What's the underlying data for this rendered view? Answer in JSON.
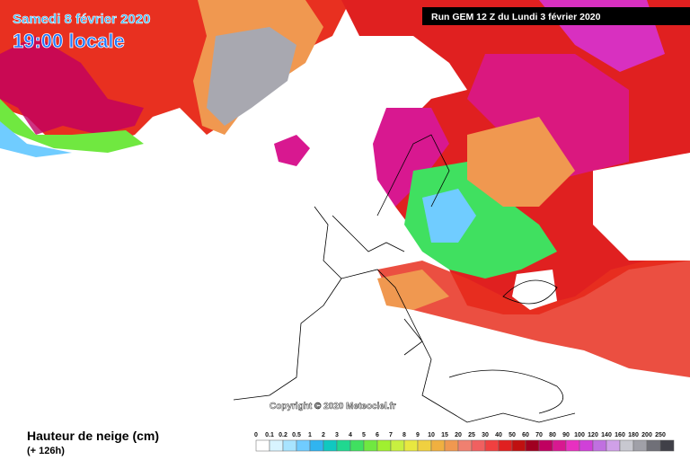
{
  "header": {
    "date": "Samedi 8 février 2020",
    "time": "19:00 locale",
    "run": "Run GEM 12 Z du Lundi 3 février 2020"
  },
  "copyright": "Copyright © 2020 Meteociel.fr",
  "legend": {
    "title": "Hauteur de neige (cm)",
    "lead": "(+ 126h)",
    "items": [
      {
        "label": "0",
        "color": "#ffffff"
      },
      {
        "label": "0.1",
        "color": "#d8f4ff"
      },
      {
        "label": "0.2",
        "color": "#a8e4ff"
      },
      {
        "label": "0.5",
        "color": "#70ccff"
      },
      {
        "label": "1",
        "color": "#30b4f0"
      },
      {
        "label": "2",
        "color": "#10c8c0"
      },
      {
        "label": "3",
        "color": "#20d890"
      },
      {
        "label": "4",
        "color": "#40e060"
      },
      {
        "label": "5",
        "color": "#70e840"
      },
      {
        "label": "6",
        "color": "#a0f030"
      },
      {
        "label": "7",
        "color": "#c8f040"
      },
      {
        "label": "8",
        "color": "#e8e840"
      },
      {
        "label": "9",
        "color": "#f0d040"
      },
      {
        "label": "10",
        "color": "#f0b040"
      },
      {
        "label": "15",
        "color": "#f09850"
      },
      {
        "label": "20",
        "color": "#f08070"
      },
      {
        "label": "25",
        "color": "#f06060"
      },
      {
        "label": "30",
        "color": "#f04040"
      },
      {
        "label": "40",
        "color": "#e02020"
      },
      {
        "label": "50",
        "color": "#c01010"
      },
      {
        "label": "60",
        "color": "#a00020"
      },
      {
        "label": "70",
        "color": "#c00060"
      },
      {
        "label": "80",
        "color": "#d81890"
      },
      {
        "label": "90",
        "color": "#e830c0"
      },
      {
        "label": "100",
        "color": "#d040d8"
      },
      {
        "label": "120",
        "color": "#c070e0"
      },
      {
        "label": "140",
        "color": "#d0a0e8"
      },
      {
        "label": "160",
        "color": "#c8c8d0"
      },
      {
        "label": "180",
        "color": "#a0a0a8"
      },
      {
        "label": "200",
        "color": "#707078"
      },
      {
        "label": "250",
        "color": "#404048"
      }
    ]
  }
}
